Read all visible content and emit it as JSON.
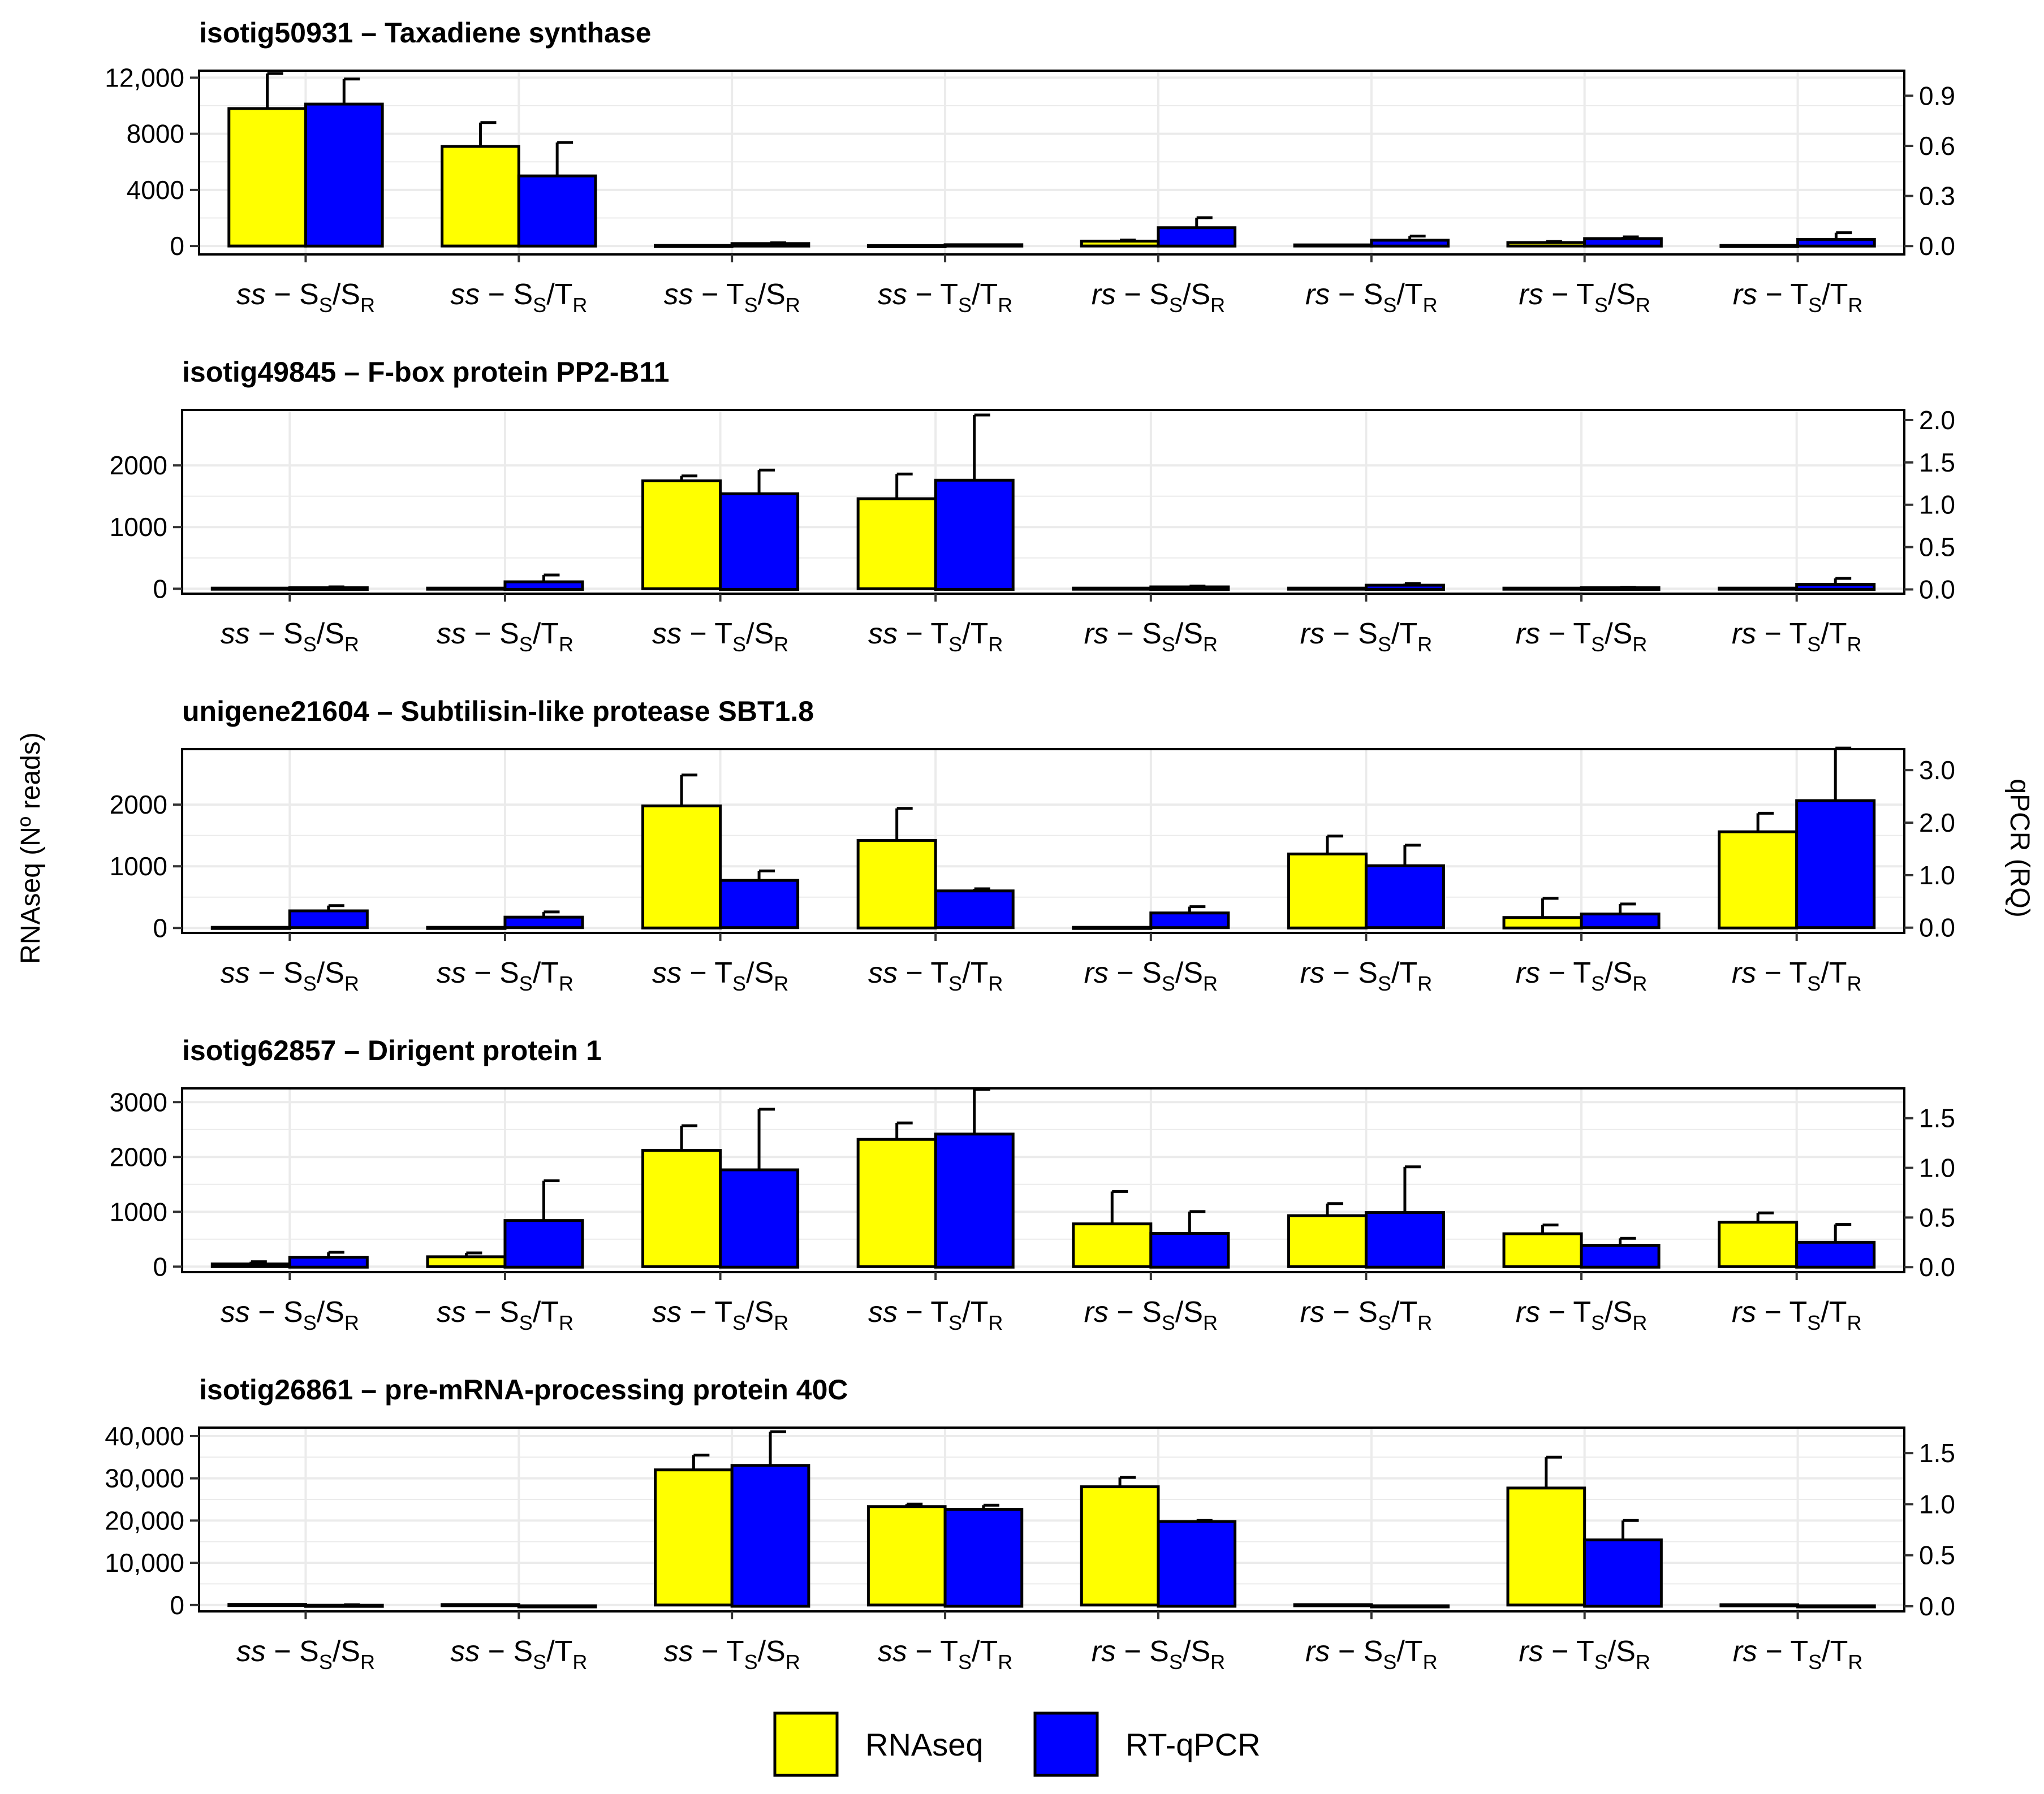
{
  "colors": {
    "rnaseq": "#ffff00",
    "qpcr": "#0000ff",
    "grid": "#ebebeb",
    "border": "#000000"
  },
  "left_axis_title": "RNAseq (Nº reads)",
  "right_axis_title": "qPCR (RQ)",
  "legend": {
    "items": [
      {
        "label": "RNAseq"
      },
      {
        "label": "RT-qPCR"
      }
    ]
  },
  "chart_data": {
    "type": "bar",
    "categories": [
      {
        "prefix": "ss",
        "num": "S",
        "num_sub": "S",
        "den": "S",
        "den_sub": "R"
      },
      {
        "prefix": "ss",
        "num": "S",
        "num_sub": "S",
        "den": "T",
        "den_sub": "R"
      },
      {
        "prefix": "ss",
        "num": "T",
        "num_sub": "S",
        "den": "S",
        "den_sub": "R"
      },
      {
        "prefix": "ss",
        "num": "T",
        "num_sub": "S",
        "den": "T",
        "den_sub": "R"
      },
      {
        "prefix": "rs",
        "num": "S",
        "num_sub": "S",
        "den": "S",
        "den_sub": "R"
      },
      {
        "prefix": "rs",
        "num": "S",
        "num_sub": "S",
        "den": "T",
        "den_sub": "R"
      },
      {
        "prefix": "rs",
        "num": "T",
        "num_sub": "S",
        "den": "S",
        "den_sub": "R"
      },
      {
        "prefix": "rs",
        "num": "T",
        "num_sub": "S",
        "den": "T",
        "den_sub": "R"
      }
    ],
    "panels": [
      {
        "title": "isotig50931 – Taxadiene synthase",
        "left": {
          "lim": [
            -600,
            12500
          ],
          "ticks": [
            0,
            4000,
            8000,
            12000
          ],
          "tick_labels": [
            "0",
            "4000",
            "8000",
            "12,000"
          ]
        },
        "right": {
          "lim": [
            -0.05,
            1.05
          ],
          "ticks": [
            0,
            0.3,
            0.6,
            0.9
          ],
          "tick_labels": [
            "0.0",
            "0.3",
            "0.6",
            "0.9"
          ]
        },
        "rnaseq": {
          "values": [
            9800,
            7100,
            40,
            30,
            350,
            80,
            250,
            40
          ],
          "err": [
            2500,
            1700,
            0,
            0,
            80,
            0,
            70,
            0
          ]
        },
        "qpcr": {
          "values": [
            0.85,
            0.42,
            0.015,
            0.008,
            0.11,
            0.035,
            0.045,
            0.04
          ],
          "err": [
            0.15,
            0.2,
            0.005,
            0,
            0.06,
            0.025,
            0.01,
            0.04
          ]
        }
      },
      {
        "title": "isotig49845 – F-box protein PP2-B11",
        "left": {
          "lim": [
            -80,
            2900
          ],
          "ticks": [
            0,
            1000,
            2000
          ],
          "tick_labels": [
            "0",
            "1000",
            "2000"
          ]
        },
        "right": {
          "lim": [
            -0.05,
            2.12
          ],
          "ticks": [
            0,
            0.5,
            1,
            1.5,
            2
          ],
          "tick_labels": [
            "0.0",
            "0.5",
            "1.0",
            "1.5",
            "2.0"
          ]
        },
        "rnaseq": {
          "values": [
            10,
            10,
            1750,
            1460,
            10,
            10,
            10,
            10
          ],
          "err": [
            0,
            0,
            80,
            400,
            0,
            0,
            0,
            0
          ]
        },
        "qpcr": {
          "values": [
            0.02,
            0.09,
            1.13,
            1.29,
            0.03,
            0.05,
            0.02,
            0.06
          ],
          "err": [
            0.01,
            0.08,
            0.28,
            0.77,
            0.01,
            0.02,
            0.005,
            0.07
          ]
        }
      },
      {
        "title": "unigene21604 – Subtilisin-like protease SBT1.8",
        "left": {
          "lim": [
            -80,
            2900
          ],
          "ticks": [
            0,
            1000,
            2000
          ],
          "tick_labels": [
            "0",
            "1000",
            "2000"
          ]
        },
        "right": {
          "lim": [
            -0.1,
            3.4
          ],
          "ticks": [
            0,
            1,
            2,
            3
          ],
          "tick_labels": [
            "0.0",
            "1.0",
            "2.0",
            "3.0"
          ]
        },
        "rnaseq": {
          "values": [
            10,
            10,
            1980,
            1420,
            10,
            1200,
            170,
            1560
          ],
          "err": [
            0,
            0,
            500,
            520,
            0,
            290,
            310,
            300
          ]
        },
        "qpcr": {
          "values": [
            0.32,
            0.2,
            0.9,
            0.7,
            0.28,
            1.18,
            0.26,
            2.42
          ],
          "err": [
            0.1,
            0.1,
            0.18,
            0.04,
            0.12,
            0.39,
            0.19,
            1.0
          ]
        }
      },
      {
        "title": "isotig62857 – Dirigent protein 1",
        "left": {
          "lim": [
            -100,
            3250
          ],
          "ticks": [
            0,
            1000,
            2000,
            3000
          ],
          "tick_labels": [
            "0",
            "1000",
            "2000",
            "3000"
          ]
        },
        "right": {
          "lim": [
            -0.05,
            1.8
          ],
          "ticks": [
            0,
            0.5,
            1,
            1.5
          ],
          "tick_labels": [
            "0.0",
            "0.5",
            "1.0",
            "1.5"
          ]
        },
        "rnaseq": {
          "values": [
            50,
            180,
            2120,
            2320,
            780,
            930,
            600,
            810
          ],
          "err": [
            40,
            70,
            450,
            300,
            590,
            220,
            160,
            170
          ]
        },
        "qpcr": {
          "values": [
            0.1,
            0.47,
            0.98,
            1.34,
            0.34,
            0.55,
            0.22,
            0.25
          ],
          "err": [
            0.05,
            0.4,
            0.61,
            0.45,
            0.22,
            0.46,
            0.07,
            0.18
          ]
        }
      },
      {
        "title": "isotig26861 – pre-mRNA-processing protein 40C",
        "left": {
          "lim": [
            -1500,
            42000
          ],
          "ticks": [
            0,
            10000,
            20000,
            30000,
            40000
          ],
          "tick_labels": [
            "0",
            "10,000",
            "20,000",
            "30,000",
            "40,000"
          ]
        },
        "right": {
          "lim": [
            -0.05,
            1.75
          ],
          "ticks": [
            0,
            0.5,
            1,
            1.5
          ],
          "tick_labels": [
            "0.0",
            "0.5",
            "1.0",
            "1.5"
          ]
        },
        "rnaseq": {
          "values": [
            150,
            120,
            32000,
            23300,
            28000,
            100,
            27700,
            80
          ],
          "err": [
            0,
            0,
            3500,
            600,
            2200,
            0,
            7300,
            0
          ]
        },
        "qpcr": {
          "values": [
            0.01,
            0.005,
            1.38,
            0.95,
            0.83,
            0.005,
            0.65,
            0.005
          ],
          "err": [
            0.005,
            0,
            0.33,
            0.04,
            0.01,
            0,
            0.19,
            0
          ]
        }
      }
    ]
  }
}
